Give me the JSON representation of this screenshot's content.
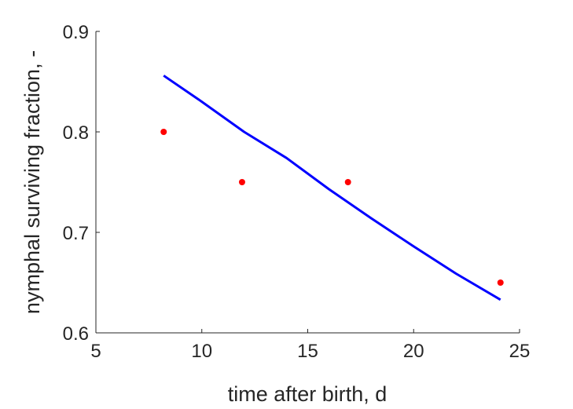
{
  "chart_data": {
    "type": "scatter",
    "xlabel": "time after birth, d",
    "ylabel": "nymphal surviving fraction, -",
    "xlim": [
      5,
      25
    ],
    "ylim": [
      0.6,
      0.9
    ],
    "xticks": [
      5,
      10,
      15,
      20,
      25
    ],
    "xtick_labels": [
      "5",
      "10",
      "15",
      "20",
      "25"
    ],
    "yticks": [
      0.6,
      0.7,
      0.8,
      0.9
    ],
    "ytick_labels": [
      "0.6",
      "0.7",
      "0.8",
      "0.9"
    ],
    "grid": false,
    "colors": {
      "points": "#ff0000",
      "fit": "#0000ff",
      "axes": "#262626"
    },
    "series": [
      {
        "kind": "points",
        "x": [
          8.2,
          11.9,
          16.9,
          24.1
        ],
        "y": [
          0.8,
          0.75,
          0.75,
          0.65
        ]
      },
      {
        "kind": "line",
        "x": [
          8.2,
          10,
          12,
          14,
          16,
          18,
          20,
          22,
          24.1
        ],
        "y": [
          0.856,
          0.83,
          0.8,
          0.774,
          0.743,
          0.714,
          0.686,
          0.659,
          0.633
        ]
      }
    ]
  }
}
